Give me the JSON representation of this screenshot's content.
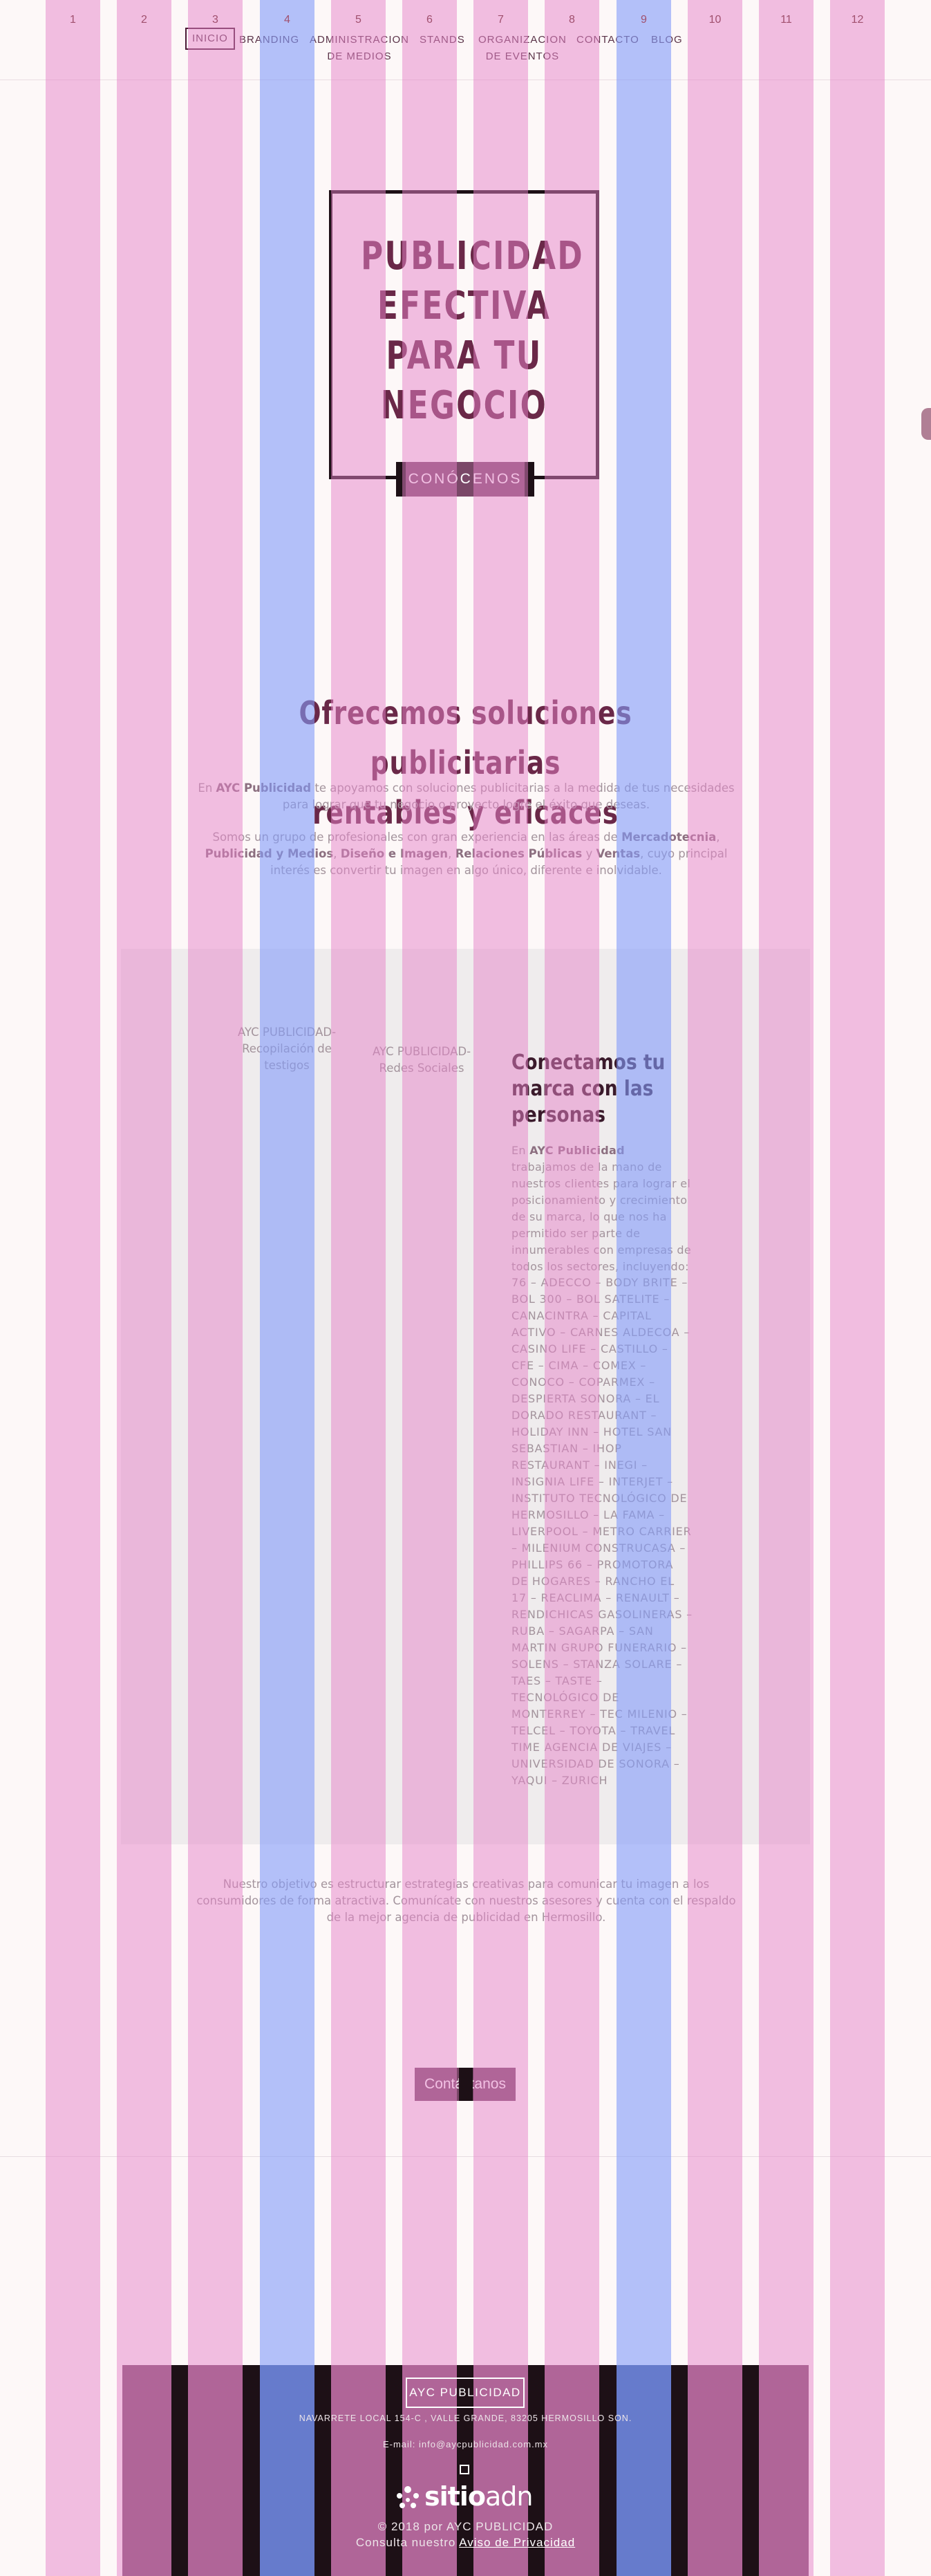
{
  "grid": {
    "columns": [
      "1",
      "2",
      "3",
      "4",
      "5",
      "6",
      "7",
      "8",
      "9",
      "10",
      "11",
      "12"
    ],
    "highlighted_columns": [
      "4",
      "9"
    ]
  },
  "nav": {
    "items": [
      {
        "label_lines": [
          "INICIO"
        ],
        "active": true
      },
      {
        "label_lines": [
          "BRANDING"
        ]
      },
      {
        "label_lines": [
          "ADMINISTRACION",
          "DE MEDIOS"
        ]
      },
      {
        "label_lines": [
          "STANDS"
        ]
      },
      {
        "label_lines": [
          "ORGANIZACION",
          "DE EVENTOS"
        ]
      },
      {
        "label_lines": [
          "CONTACTO"
        ]
      },
      {
        "label_lines": [
          "BLOG"
        ]
      }
    ]
  },
  "hero": {
    "title_lines": [
      "PUBLICIDAD",
      "EFECTIVA",
      "PARA TU",
      "NEGOCIO"
    ],
    "cta_label": "CONÓCENOS"
  },
  "intro": {
    "title_lines": [
      "Ofrecemos soluciones publicitarias",
      "rentables y eficaces"
    ],
    "p1": {
      "pre": "En ",
      "brand": "AYC Publicidad",
      "post": " te apoyamos con soluciones publicitarias a la medida de tus necesidades para lograr que tu negocio o proyecto logre el éxito que deseas."
    },
    "p2": {
      "pre": "Somos un grupo de profesionales con gran experiencia en las áreas de ",
      "b1": "Mercadotecnia",
      "sep1": ", ",
      "b2": "Publicidad y Medios",
      "sep2": ", ",
      "b3": "Diseño e Imagen",
      "sep3": ", ",
      "b4": "Relaciones Públicas",
      "sep4": " y ",
      "b5": "Ventas",
      "post": ", cuyo principal interés es convertir tu imagen en algo único, diferente e inolvidable."
    }
  },
  "gallery": {
    "caption_left_lines": [
      "AYC PUBLICIDAD-",
      "Recopilación de",
      "testigos"
    ],
    "caption_mid_lines": [
      "AYC PUBLICIDAD-",
      "Redes Sociales"
    ]
  },
  "connect": {
    "title_lines": [
      "Conectamos tu",
      "marca con las",
      "personas"
    ],
    "paragraph": {
      "pre": "En ",
      "brand": "AYC Publicidad",
      "post": " trabajamos de la mano de nuestros clientes para lograr el posicionamiento y crecimiento de su marca, lo que nos ha permitido ser parte de innumerables con empresas de todos los sectores, incluyendo:"
    },
    "clients": "76 – ADECCO – BODY BRITE – BOL 300 – BOL SATELITE – CANACINTRA – CAPITAL ACTIVO – CARNES ALDECOA – CASINO LIFE – CASTILLO – CFE – CIMA – COMEX – CONOCO – COPARMEX – DESPIERTA SONORA – EL DORADO RESTAURANT – HOLIDAY INN – HOTEL SAN SEBASTIAN – IHOP RESTAURANT – INEGI – INSIGNIA LIFE – INTERJET – INSTITUTO TECNOLÓGICO DE HERMOSILLO – LA FAMA – LIVERPOOL – METRO CARRIER – MILENIUM CONSTRUCASA – PHILLIPS 66 – PROMOTORA DE HOGARES – RANCHO EL 17 – REACLIMA – RENAULT – RENDICHICAS GASOLINERAS – RUBA – SAGARPA – SAN MARTIN GRUPO FUNERARIO – SOLENS – STANZA SOLARE – TAES – TASTE – TECNOLÓGICO DE MONTERREY – TEC MILENIO – TELCEL – TOYOTA – TRAVEL TIME AGENCIA DE VIAJES – UNIVERSIDAD DE SONORA – YAQUI – ZURICH"
  },
  "objective": "Nuestro objetivo es estructurar estrategias creativas para comunicar tu imagen a los consumidores de forma atractiva. Comunícate con nuestros asesores y cuenta con el respaldo de la mejor agencia de publicidad en Hermosillo.",
  "contact_cta": "Contáctanos",
  "footer": {
    "brand": "AYC PUBLICIDAD",
    "address": "NAVARRETE LOCAL 154-C , VALLE GRANDE, 83205 HERMOSILLO SON.",
    "email": "E-mail: info@aycpublicidad.com.mx",
    "logo_main": "sitio",
    "logo_suffix": "adn",
    "copyright": "© 2018 por AYC PUBLICIDAD",
    "privacy_pre": "Consulta nuestro ",
    "privacy_link": "Aviso de Privacidad"
  },
  "colors": {
    "accent": "#7a4868",
    "title": "#6a2848",
    "dark": "#1d1016",
    "grid_pink": "#e682c8",
    "grid_blue": "#829bfa"
  }
}
